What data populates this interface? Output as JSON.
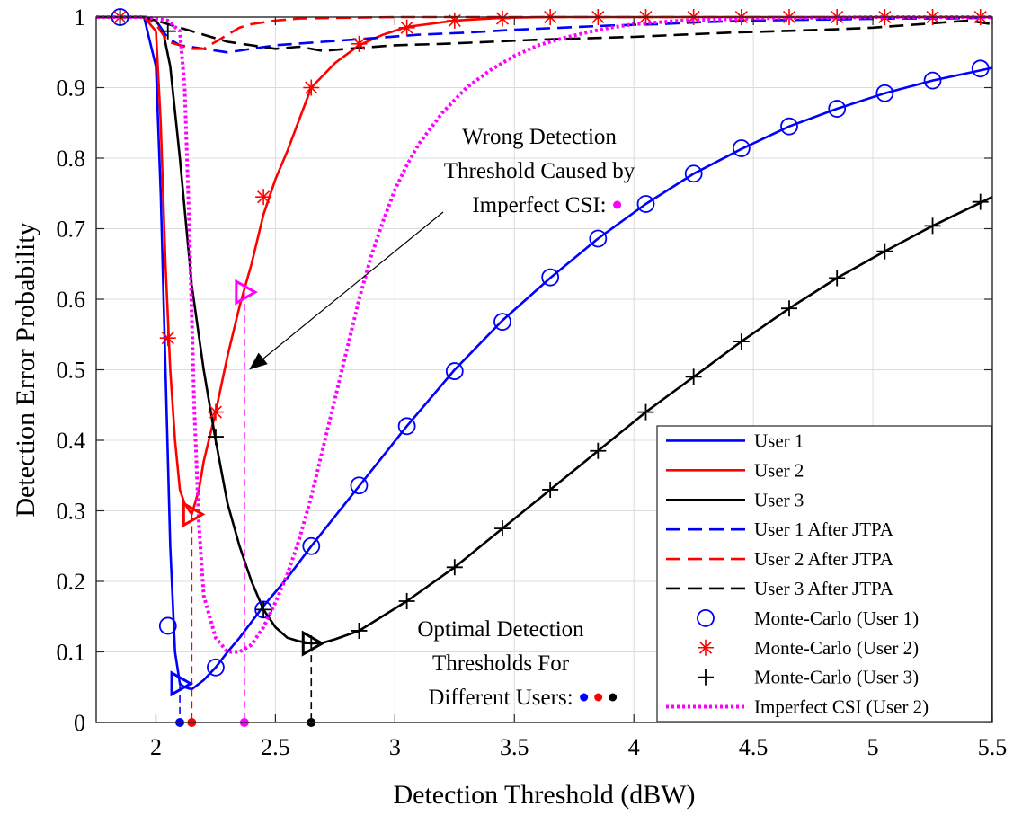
{
  "chart_data": {
    "type": "line",
    "xlabel": "Detection Threshold (dBW)",
    "ylabel": "Detection Error Probability",
    "xlim": [
      1.75,
      5.5
    ],
    "ylim": [
      0,
      1
    ],
    "xticks": [
      {
        "value": 2,
        "label": "2"
      },
      {
        "value": 2.5,
        "label": "2.5"
      },
      {
        "value": 3,
        "label": "3"
      },
      {
        "value": 3.5,
        "label": "3.5"
      },
      {
        "value": 4,
        "label": "4"
      },
      {
        "value": 4.5,
        "label": "4.5"
      },
      {
        "value": 5,
        "label": "5"
      },
      {
        "value": 5.5,
        "label": "5.5"
      }
    ],
    "yticks": [
      {
        "value": 0,
        "label": "0"
      },
      {
        "value": 0.1,
        "label": "0.1"
      },
      {
        "value": 0.2,
        "label": "0.2"
      },
      {
        "value": 0.3,
        "label": "0.3"
      },
      {
        "value": 0.4,
        "label": "0.4"
      },
      {
        "value": 0.5,
        "label": "0.5"
      },
      {
        "value": 0.6,
        "label": "0.6"
      },
      {
        "value": 0.7,
        "label": "0.7"
      },
      {
        "value": 0.8,
        "label": "0.8"
      },
      {
        "value": 0.9,
        "label": "0.9"
      },
      {
        "value": 1,
        "label": "1"
      }
    ],
    "grid": true,
    "legend_position": "bottom-right",
    "series": [
      {
        "name": "User 1",
        "color": "#0000ff",
        "style": "solid",
        "marker": "none",
        "x": [
          1.75,
          1.85,
          1.95,
          2.0,
          2.02,
          2.04,
          2.06,
          2.08,
          2.1,
          2.12,
          2.15,
          2.2,
          2.25,
          2.3,
          2.35,
          2.45,
          2.55,
          2.65,
          2.85,
          3.05,
          3.25,
          3.45,
          3.65,
          3.85,
          4.05,
          4.25,
          4.45,
          4.65,
          4.85,
          5.05,
          5.25,
          5.5
        ],
        "y": [
          1.0,
          1.0,
          1.0,
          0.93,
          0.75,
          0.5,
          0.25,
          0.1,
          0.055,
          0.05,
          0.047,
          0.06,
          0.078,
          0.1,
          0.12,
          0.165,
          0.205,
          0.25,
          0.335,
          0.42,
          0.5,
          0.57,
          0.63,
          0.686,
          0.735,
          0.778,
          0.813,
          0.845,
          0.87,
          0.892,
          0.91,
          0.928
        ]
      },
      {
        "name": "User 2",
        "color": "#ff0000",
        "style": "solid",
        "marker": "none",
        "x": [
          1.75,
          1.85,
          1.95,
          2.0,
          2.02,
          2.04,
          2.06,
          2.08,
          2.1,
          2.12,
          2.15,
          2.18,
          2.2,
          2.25,
          2.3,
          2.35,
          2.4,
          2.45,
          2.5,
          2.55,
          2.65,
          2.75,
          2.85,
          2.95,
          3.05,
          3.25,
          3.45,
          3.65,
          4.0,
          4.5,
          5.0,
          5.5
        ],
        "y": [
          1.0,
          1.0,
          1.0,
          0.98,
          0.85,
          0.65,
          0.5,
          0.4,
          0.33,
          0.31,
          0.295,
          0.33,
          0.37,
          0.44,
          0.52,
          0.59,
          0.65,
          0.72,
          0.77,
          0.81,
          0.9,
          0.935,
          0.96,
          0.975,
          0.986,
          0.995,
          0.999,
          1.0,
          1.0,
          1.0,
          1.0,
          1.0
        ]
      },
      {
        "name": "User 3",
        "color": "#000000",
        "style": "solid",
        "marker": "none",
        "x": [
          1.75,
          1.85,
          1.95,
          2.0,
          2.03,
          2.06,
          2.1,
          2.15,
          2.2,
          2.25,
          2.3,
          2.35,
          2.4,
          2.45,
          2.5,
          2.55,
          2.6,
          2.65,
          2.7,
          2.75,
          2.85,
          3.05,
          3.25,
          3.45,
          3.65,
          3.85,
          4.05,
          4.25,
          4.45,
          4.65,
          4.85,
          5.05,
          5.25,
          5.5
        ],
        "y": [
          1.0,
          1.0,
          1.0,
          0.995,
          0.98,
          0.93,
          0.8,
          0.62,
          0.5,
          0.4,
          0.31,
          0.25,
          0.2,
          0.16,
          0.135,
          0.12,
          0.115,
          0.112,
          0.113,
          0.118,
          0.13,
          0.172,
          0.22,
          0.275,
          0.33,
          0.385,
          0.44,
          0.49,
          0.54,
          0.587,
          0.63,
          0.668,
          0.704,
          0.745
        ]
      },
      {
        "name": "User 1 After JTPA",
        "color": "#0000ff",
        "style": "dashed",
        "marker": "none",
        "x": [
          1.75,
          1.95,
          2.0,
          2.05,
          2.1,
          2.2,
          2.3,
          2.5,
          2.7,
          2.9,
          3.1,
          3.3,
          3.5,
          3.7,
          3.9,
          4.1,
          4.3,
          4.5,
          4.7,
          4.9,
          5.1,
          5.3,
          5.5
        ],
        "y": [
          1.0,
          1.0,
          0.995,
          0.97,
          0.96,
          0.955,
          0.95,
          0.96,
          0.965,
          0.97,
          0.975,
          0.978,
          0.982,
          0.985,
          0.988,
          0.99,
          0.993,
          0.995,
          0.996,
          0.997,
          0.998,
          0.998,
          0.999
        ]
      },
      {
        "name": "User 2 After JTPA",
        "color": "#ff0000",
        "style": "dashed",
        "marker": "none",
        "x": [
          1.75,
          1.95,
          2.0,
          2.05,
          2.1,
          2.15,
          2.2,
          2.25,
          2.3,
          2.35,
          2.4,
          2.5,
          2.6,
          2.8,
          3.0,
          3.5,
          4.0,
          4.5,
          5.0,
          5.5
        ],
        "y": [
          1.0,
          1.0,
          0.99,
          0.965,
          0.96,
          0.955,
          0.955,
          0.965,
          0.975,
          0.985,
          0.99,
          0.995,
          0.998,
          0.999,
          1.0,
          1.0,
          1.0,
          1.0,
          1.0,
          1.0
        ]
      },
      {
        "name": "User 3 After JTPA",
        "color": "#000000",
        "style": "dashed",
        "marker": "none",
        "x": [
          1.75,
          1.95,
          2.0,
          2.1,
          2.2,
          2.3,
          2.4,
          2.5,
          2.6,
          2.7,
          2.8,
          3.0,
          3.2,
          3.4,
          3.6,
          3.8,
          4.0,
          4.2,
          4.4,
          4.6,
          4.8,
          5.0,
          5.2,
          5.4,
          5.5
        ],
        "y": [
          1.0,
          1.0,
          0.995,
          0.985,
          0.975,
          0.965,
          0.96,
          0.955,
          0.958,
          0.952,
          0.955,
          0.96,
          0.962,
          0.965,
          0.968,
          0.97,
          0.972,
          0.975,
          0.978,
          0.98,
          0.982,
          0.985,
          0.99,
          0.995,
          0.99
        ]
      },
      {
        "name": "Monte-Carlo (User 1)",
        "color": "#0000ff",
        "style": "none",
        "marker": "circle",
        "x": [
          1.85,
          2.05,
          2.25,
          2.45,
          2.65,
          2.85,
          3.05,
          3.25,
          3.45,
          3.65,
          3.85,
          4.05,
          4.25,
          4.45,
          4.65,
          4.85,
          5.05,
          5.25,
          5.45
        ],
        "y": [
          1.0,
          0.137,
          0.078,
          0.16,
          0.25,
          0.336,
          0.42,
          0.498,
          0.568,
          0.631,
          0.686,
          0.735,
          0.778,
          0.814,
          0.845,
          0.87,
          0.892,
          0.91,
          0.927
        ]
      },
      {
        "name": "Monte-Carlo (User 2)",
        "color": "#ff0000",
        "style": "none",
        "marker": "asterisk",
        "x": [
          1.85,
          2.05,
          2.25,
          2.45,
          2.65,
          2.85,
          3.05,
          3.25,
          3.45,
          3.65,
          3.85,
          4.05,
          4.25,
          4.45,
          4.65,
          4.85,
          5.05,
          5.25,
          5.45
        ],
        "y": [
          1.0,
          0.545,
          0.44,
          0.745,
          0.9,
          0.962,
          0.985,
          0.995,
          0.998,
          1.0,
          1.0,
          1.0,
          1.0,
          1.0,
          1.0,
          1.0,
          1.0,
          1.0,
          1.0
        ]
      },
      {
        "name": "Monte-Carlo (User 3)",
        "color": "#000000",
        "style": "none",
        "marker": "plus",
        "x": [
          1.85,
          2.05,
          2.25,
          2.45,
          2.65,
          2.85,
          3.05,
          3.25,
          3.45,
          3.65,
          3.85,
          4.05,
          4.25,
          4.45,
          4.65,
          4.85,
          5.05,
          5.25,
          5.45
        ],
        "y": [
          1.0,
          0.98,
          0.405,
          0.16,
          0.112,
          0.13,
          0.172,
          0.22,
          0.275,
          0.33,
          0.385,
          0.44,
          0.49,
          0.54,
          0.587,
          0.63,
          0.668,
          0.704,
          0.738
        ]
      },
      {
        "name": "Imperfect CSI (User 2)",
        "color": "#ff00ff",
        "style": "dotted",
        "marker": "none",
        "x": [
          1.75,
          1.95,
          2.05,
          2.1,
          2.12,
          2.14,
          2.16,
          2.18,
          2.2,
          2.25,
          2.3,
          2.35,
          2.4,
          2.45,
          2.5,
          2.55,
          2.6,
          2.65,
          2.7,
          2.75,
          2.8,
          2.85,
          2.9,
          2.95,
          3.0,
          3.05,
          3.1,
          3.2,
          3.3,
          3.4,
          3.5,
          3.6,
          3.7,
          3.8,
          3.9,
          4.0,
          4.2,
          4.5,
          5.0,
          5.5
        ],
        "y": [
          1.0,
          1.0,
          0.995,
          0.98,
          0.9,
          0.7,
          0.45,
          0.28,
          0.18,
          0.12,
          0.1,
          0.1,
          0.11,
          0.135,
          0.17,
          0.21,
          0.26,
          0.32,
          0.39,
          0.46,
          0.53,
          0.6,
          0.66,
          0.71,
          0.755,
          0.79,
          0.82,
          0.865,
          0.9,
          0.925,
          0.945,
          0.96,
          0.97,
          0.978,
          0.985,
          0.99,
          0.995,
          0.998,
          1.0,
          1.0
        ]
      }
    ],
    "highlight_markers": [
      {
        "color": "#0000ff",
        "x": 2.1,
        "y": 0.055
      },
      {
        "color": "#ff0000",
        "x": 2.15,
        "y": 0.295
      },
      {
        "color": "#000000",
        "x": 2.65,
        "y": 0.112
      },
      {
        "color": "#ff00ff",
        "x": 2.37,
        "y": 0.61
      }
    ],
    "threshold_drops": [
      {
        "color": "#0000ff",
        "x": 2.1,
        "from": 0.055
      },
      {
        "color": "#ff0000",
        "x": 2.15,
        "from": 0.295
      },
      {
        "color": "#000000",
        "x": 2.65,
        "from": 0.112
      },
      {
        "color": "#ff00ff",
        "x": 2.37,
        "from": 0.61
      }
    ],
    "annotations": [
      {
        "lines": [
          "Wrong Detection",
          "Threshold Caused by",
          "Imperfect CSI:"
        ],
        "dots": [
          "#ff00ff"
        ],
        "arrow_to": {
          "x": 2.39,
          "y": 0.5
        }
      },
      {
        "lines": [
          "Optimal Detection",
          "Thresholds For",
          "Different Users:"
        ],
        "dots": [
          "#0000ff",
          "#ff0000",
          "#000000"
        ]
      }
    ]
  }
}
